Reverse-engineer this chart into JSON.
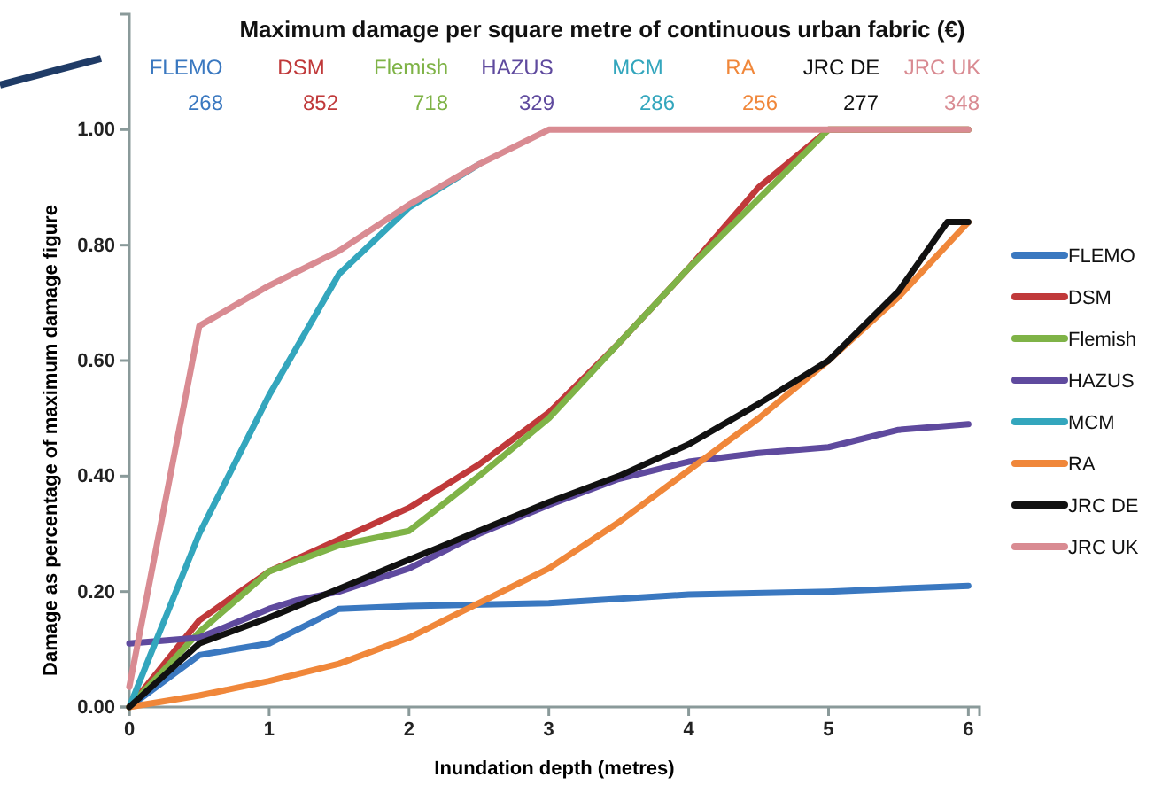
{
  "chart_data": {
    "type": "line",
    "title": "Maximum damage per square metre of continuous urban fabric (€)",
    "xlabel": "Inundation depth (metres)",
    "ylabel": "Damage as percentage of maximum damage figure",
    "annotations": [
      "268",
      "852",
      "718",
      "329",
      "286",
      "256",
      "277",
      "348"
    ],
    "xlim": [
      0,
      6.08
    ],
    "xticks": [
      0,
      1,
      2,
      3,
      4,
      5,
      6
    ],
    "ylim": [
      0,
      1.2
    ],
    "yticks": [
      {
        "value": 0,
        "label": "0.00"
      },
      {
        "value": 0.2,
        "label": "0.20"
      },
      {
        "value": 0.4,
        "label": "0.40"
      },
      {
        "value": 0.6,
        "label": "0.60"
      },
      {
        "value": 0.8,
        "label": "0.80"
      },
      {
        "value": 1,
        "label": "1.00"
      }
    ],
    "grid": false,
    "legend": "right",
    "marker": "none",
    "line_style": "solid",
    "series": [
      {
        "name": "FLEMO",
        "color": "#3a78c0",
        "x": [
          0,
          0.5,
          1,
          1.25,
          1.5,
          2,
          3,
          4,
          5,
          6
        ],
        "values": [
          0,
          0.09,
          0.11,
          0.14,
          0.17,
          0.175,
          0.18,
          0.195,
          0.2,
          0.21
        ]
      },
      {
        "name": "DSM",
        "color": "#c0393a",
        "x": [
          0,
          0.5,
          1,
          1.5,
          2,
          2.5,
          3,
          3.5,
          4,
          4.5,
          5,
          6
        ],
        "values": [
          0,
          0.15,
          0.235,
          0.29,
          0.345,
          0.42,
          0.51,
          0.63,
          0.76,
          0.9,
          1,
          1
        ]
      },
      {
        "name": "Flemish",
        "color": "#7fb347",
        "x": [
          0,
          0.5,
          1,
          1.5,
          2,
          2.5,
          3,
          3.5,
          4,
          4.5,
          5,
          6
        ],
        "values": [
          0,
          0.13,
          0.235,
          0.28,
          0.305,
          0.4,
          0.5,
          0.63,
          0.76,
          0.88,
          1,
          1
        ]
      },
      {
        "name": "HAZUS",
        "color": "#5f4a9e",
        "x": [
          0,
          0.5,
          1,
          1.2,
          1.5,
          2,
          2.5,
          3,
          3.5,
          4,
          4.5,
          5,
          5.5,
          6
        ],
        "values": [
          0.11,
          0.12,
          0.17,
          0.185,
          0.2,
          0.24,
          0.3,
          0.35,
          0.395,
          0.425,
          0.44,
          0.45,
          0.48,
          0.49
        ]
      },
      {
        "name": "MCM",
        "color": "#33a6bd",
        "x": [
          0,
          0.5,
          1,
          1.5,
          2,
          2.5
        ],
        "values": [
          0,
          0.3,
          0.54,
          0.75,
          0.865,
          0.94
        ]
      },
      {
        "name": "RA",
        "color": "#f0873a",
        "x": [
          0,
          0.5,
          1,
          1.5,
          2,
          2.5,
          3,
          3.5,
          4,
          4.5,
          5,
          5.5,
          6
        ],
        "values": [
          0,
          0.02,
          0.045,
          0.075,
          0.12,
          0.18,
          0.24,
          0.32,
          0.41,
          0.5,
          0.6,
          0.71,
          0.84
        ]
      },
      {
        "name": "JRC DE",
        "color": "#111111",
        "x": [
          0,
          0.5,
          1,
          1.5,
          2,
          2.5,
          3,
          3.5,
          4,
          4.5,
          5,
          5.5,
          5.85,
          6
        ],
        "values": [
          0,
          0.11,
          0.155,
          0.205,
          0.255,
          0.305,
          0.355,
          0.4,
          0.455,
          0.525,
          0.6,
          0.72,
          0.84,
          0.84
        ]
      },
      {
        "name": "JRC UK",
        "color": "#d98b92",
        "x": [
          0,
          0.5,
          1,
          1.5,
          2,
          2.5,
          3,
          6
        ],
        "values": [
          0.035,
          0.66,
          0.73,
          0.79,
          0.87,
          0.94,
          1,
          1
        ]
      }
    ]
  }
}
